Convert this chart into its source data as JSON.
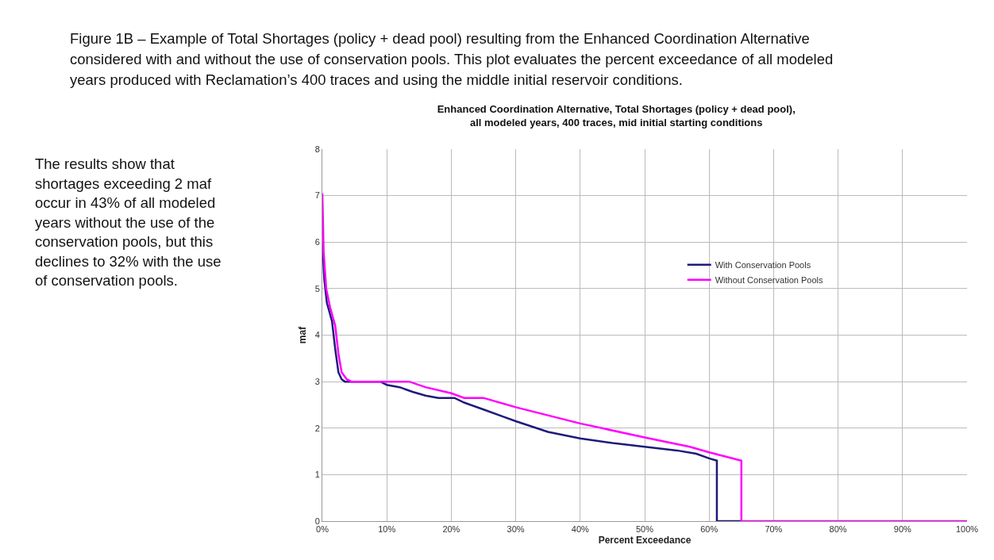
{
  "chart_data": {
    "type": "line",
    "title": "Enhanced Coordination Alternative, Total Shortages (policy + dead pool),\nall modeled years, 400 traces, mid initial starting conditions",
    "xlabel": "Percent Exceedance",
    "ylabel": "maf",
    "annotations": [
      "Figure 1B – Example of Total Shortages (policy + dead pool) resulting from the Enhanced Coordination Alternative considered with and without the use of conservation pools. This plot evaluates the percent exceedance of all modeled years produced with Reclamation’s 400 traces and using the middle initial reservoir conditions.",
      "The results show that shortages exceeding 2 maf occur in 43% of all modeled years without the use of the conservation pools, but this declines to 32% with the use of conservation pools."
    ],
    "series": [
      {
        "name": "With Conservation Pools",
        "color": "#1f1a7a",
        "x": [
          0,
          0.3,
          0.7,
          1.5,
          2,
          2.5,
          3,
          3.5,
          9,
          10,
          12,
          14,
          16,
          18,
          20.5,
          22,
          25,
          28,
          30,
          35,
          40,
          45,
          50,
          55,
          58,
          60,
          61.2,
          61.2,
          65
        ],
        "values": [
          6.0,
          5.2,
          4.7,
          4.3,
          3.7,
          3.2,
          3.05,
          3,
          3,
          2.93,
          2.88,
          2.78,
          2.7,
          2.65,
          2.65,
          2.55,
          2.4,
          2.25,
          2.15,
          1.92,
          1.78,
          1.68,
          1.6,
          1.52,
          1.45,
          1.35,
          1.3,
          0,
          0
        ]
      },
      {
        "name": "Without Conservation Pools",
        "color": "#ff00ff",
        "x": [
          0,
          0.2,
          0.6,
          1.2,
          2,
          2.5,
          3,
          3.8,
          4.5,
          13.5,
          16,
          20,
          22,
          25,
          30,
          40,
          50,
          57,
          60,
          65,
          65,
          100
        ],
        "values": [
          7.05,
          5.8,
          5.0,
          4.6,
          4.2,
          3.6,
          3.2,
          3.05,
          3,
          3,
          2.88,
          2.75,
          2.65,
          2.65,
          2.45,
          2.1,
          1.8,
          1.6,
          1.48,
          1.3,
          0,
          0
        ]
      }
    ],
    "xlim": [
      0,
      100
    ],
    "xticks": [
      {
        "value": 0,
        "label": "0%"
      },
      {
        "value": 10,
        "label": "10%"
      },
      {
        "value": 20,
        "label": "20%"
      },
      {
        "value": 30,
        "label": "30%"
      },
      {
        "value": 40,
        "label": "40%"
      },
      {
        "value": 50,
        "label": "50%"
      },
      {
        "value": 60,
        "label": "60%"
      },
      {
        "value": 70,
        "label": "70%"
      },
      {
        "value": 80,
        "label": "80%"
      },
      {
        "value": 90,
        "label": "90%"
      },
      {
        "value": 100,
        "label": "100%"
      }
    ],
    "ylim": [
      0,
      8
    ],
    "yticks": [
      0,
      1,
      2,
      3,
      4,
      5,
      6,
      7,
      8
    ],
    "grid": true,
    "legend": "right",
    "marker": "none",
    "line_style": "solid"
  }
}
